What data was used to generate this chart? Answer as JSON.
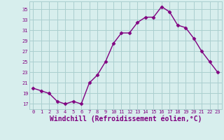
{
  "x": [
    0,
    1,
    2,
    3,
    4,
    5,
    6,
    7,
    8,
    9,
    10,
    11,
    12,
    13,
    14,
    15,
    16,
    17,
    18,
    19,
    20,
    21,
    22,
    23
  ],
  "y": [
    20.0,
    19.5,
    19.0,
    17.5,
    17.0,
    17.5,
    17.0,
    21.0,
    22.5,
    25.0,
    28.5,
    30.5,
    30.5,
    32.5,
    33.5,
    33.5,
    35.5,
    34.5,
    32.0,
    31.5,
    29.5,
    27.0,
    25.0,
    23.0
  ],
  "line_color": "#800080",
  "marker": "D",
  "markersize": 2.5,
  "linewidth": 1.0,
  "bg_color": "#d7eeed",
  "grid_color": "#aacfcf",
  "xlabel": "Windchill (Refroidissement éolien,°C)",
  "xlabel_fontsize": 7,
  "yticks": [
    17,
    19,
    21,
    23,
    25,
    27,
    29,
    31,
    33,
    35
  ],
  "xticks": [
    0,
    1,
    2,
    3,
    4,
    5,
    6,
    7,
    8,
    9,
    10,
    11,
    12,
    13,
    14,
    15,
    16,
    17,
    18,
    19,
    20,
    21,
    22,
    23
  ],
  "ylim": [
    16.0,
    36.5
  ],
  "xlim": [
    -0.5,
    23.5
  ]
}
